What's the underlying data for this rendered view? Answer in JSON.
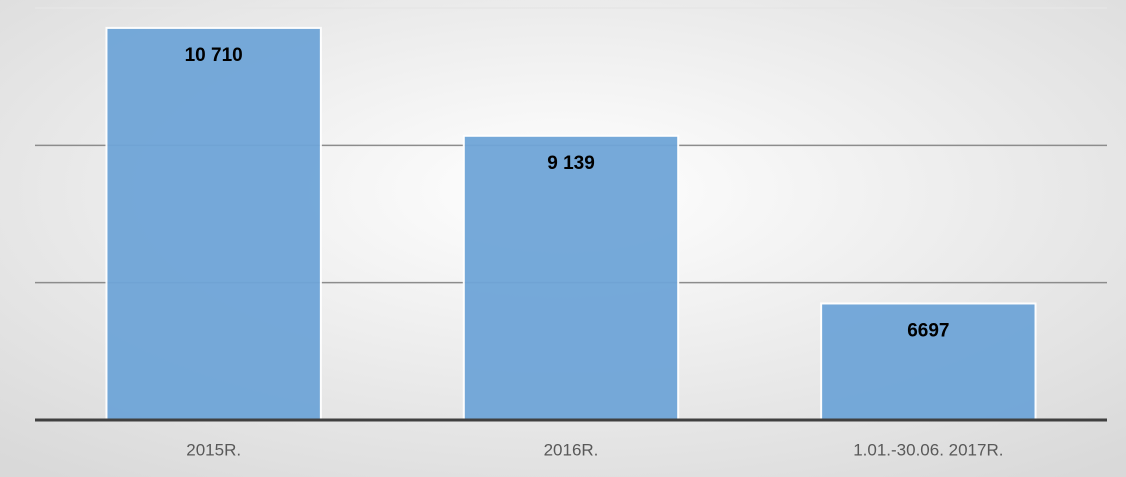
{
  "chart_data": {
    "type": "bar",
    "categories": [
      "2015R.",
      "2016R.",
      "1.01.-30.06. 2017R."
    ],
    "values": [
      10710,
      9139,
      6697
    ],
    "value_labels": [
      "10 710",
      "9 139",
      "6697"
    ],
    "color": "#6fa5d8",
    "ylim": [
      5000,
      11000
    ],
    "yticks": [
      5000,
      7000,
      9000,
      11000
    ],
    "grid": true
  }
}
